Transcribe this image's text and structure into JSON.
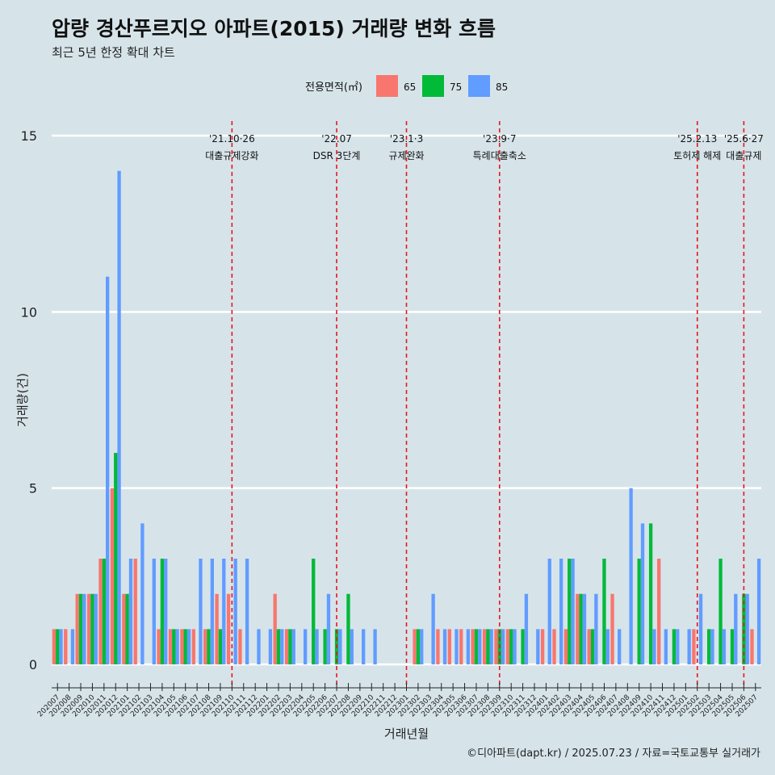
{
  "title": "압량 경산푸르지오 아파트(2015) 거래량 변화 흐름",
  "subtitle": "최근 5년 한정 확대 차트",
  "caption": "©디아파트(dapt.kr) / 2025.07.23 / 자료=국토교통부 실거래가",
  "chart_data": {
    "type": "bar",
    "xlabel": "거래년월",
    "ylabel": "거래량(건)",
    "ylim": [
      0,
      15
    ],
    "yticks": [
      0,
      5,
      10,
      15
    ],
    "legend": {
      "title": "전용면적(㎡)",
      "position": "top"
    },
    "categories": [
      "202007",
      "202008",
      "202009",
      "202010",
      "202011",
      "202012",
      "202101",
      "202102",
      "202103",
      "202104",
      "202105",
      "202106",
      "202107",
      "202108",
      "202109",
      "202110",
      "202111",
      "202112",
      "202201",
      "202202",
      "202203",
      "202204",
      "202205",
      "202206",
      "202207",
      "202208",
      "202209",
      "202210",
      "202211",
      "202212",
      "202301",
      "202302",
      "202303",
      "202304",
      "202305",
      "202306",
      "202307",
      "202308",
      "202309",
      "202310",
      "202311",
      "202312",
      "202401",
      "202402",
      "202403",
      "202404",
      "202405",
      "202406",
      "202407",
      "202408",
      "202409",
      "202410",
      "202411",
      "202412",
      "202501",
      "202502",
      "202503",
      "202504",
      "202505",
      "202506",
      "202507"
    ],
    "series": [
      {
        "name": "65",
        "color": "#f8766d",
        "values": [
          1,
          1,
          2,
          2,
          3,
          5,
          2,
          3,
          0,
          1,
          1,
          1,
          1,
          1,
          2,
          2,
          1,
          0,
          0,
          2,
          1,
          0,
          0,
          0,
          0,
          0,
          0,
          0,
          0,
          0,
          0,
          1,
          0,
          1,
          1,
          1,
          1,
          1,
          1,
          1,
          0,
          0,
          1,
          1,
          1,
          2,
          1,
          0,
          2,
          0,
          0,
          0,
          3,
          0,
          0,
          1,
          0,
          0,
          0,
          0,
          1
        ]
      },
      {
        "name": "75",
        "color": "#00ba38",
        "values": [
          1,
          0,
          2,
          2,
          3,
          6,
          2,
          0,
          0,
          3,
          1,
          1,
          0,
          1,
          1,
          0,
          0,
          0,
          0,
          1,
          1,
          0,
          3,
          1,
          1,
          2,
          0,
          0,
          0,
          0,
          0,
          1,
          0,
          0,
          0,
          0,
          1,
          1,
          1,
          1,
          1,
          0,
          0,
          0,
          3,
          2,
          1,
          3,
          0,
          0,
          3,
          4,
          0,
          1,
          0,
          0,
          1,
          3,
          1,
          2,
          0
        ]
      },
      {
        "name": "85",
        "color": "#619cff",
        "values": [
          1,
          1,
          2,
          2,
          11,
          14,
          3,
          4,
          3,
          3,
          1,
          1,
          3,
          3,
          3,
          3,
          3,
          1,
          1,
          1,
          1,
          1,
          1,
          2,
          1,
          1,
          1,
          1,
          0,
          0,
          0,
          1,
          2,
          1,
          1,
          1,
          1,
          1,
          1,
          1,
          2,
          1,
          3,
          3,
          3,
          2,
          2,
          1,
          1,
          5,
          4,
          1,
          1,
          1,
          1,
          2,
          1,
          1,
          2,
          2,
          3
        ]
      }
    ],
    "events": [
      {
        "category": "202110",
        "date": "'21.10·26",
        "label": "대출규제강화"
      },
      {
        "category": "202207",
        "date": "'22.07",
        "label": "DSR 3단계"
      },
      {
        "category": "202301",
        "date": "'23.1·3",
        "label": "규제완화"
      },
      {
        "category": "202309",
        "date": "'23.9·7",
        "label": "특례대출축소"
      },
      {
        "category": "202502",
        "date": "'25.2.13",
        "label": "토허제 해제"
      },
      {
        "category": "202506",
        "date": "'25.6·27",
        "label": "대출규제"
      }
    ],
    "event_line_color": "#e8161c",
    "grid": true,
    "gridline_color": "#ffffff"
  }
}
